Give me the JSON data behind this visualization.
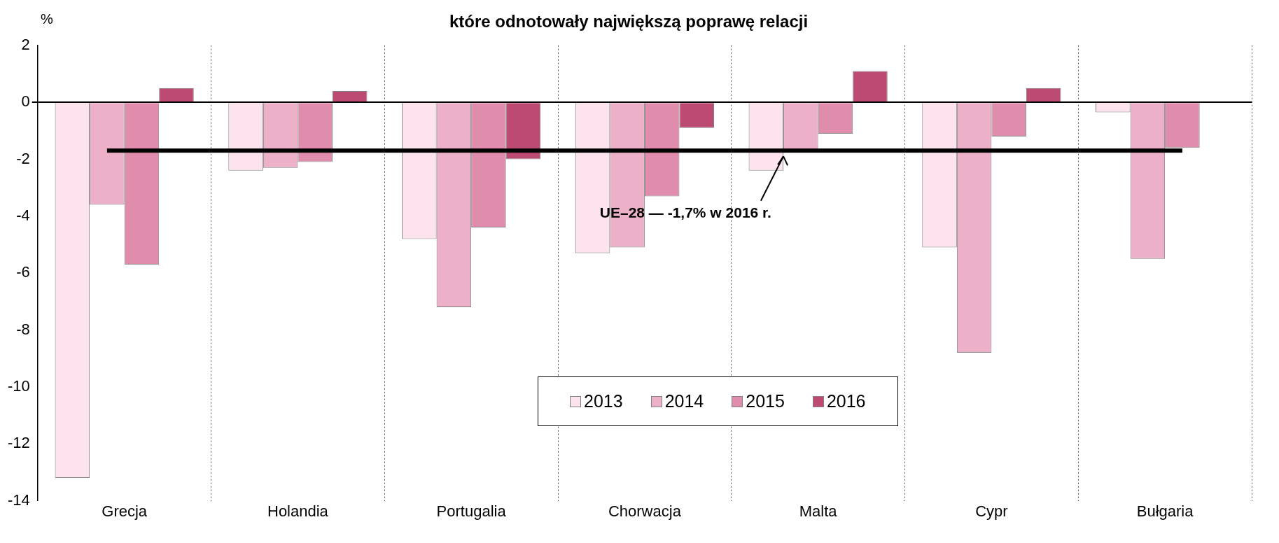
{
  "chart_data": {
    "type": "bar",
    "title": "które odnotowały największą poprawę relacji",
    "ylabel": "%",
    "categories": [
      "Grecja",
      "Holandia",
      "Portugalia",
      "Chorwacja",
      "Malta",
      "Cypr",
      "Bułgaria"
    ],
    "series": [
      {
        "name": "2013",
        "color": "#fde3ee",
        "values": [
          -13.2,
          -2.4,
          -4.8,
          -5.3,
          -2.4,
          -5.1,
          -0.35
        ]
      },
      {
        "name": "2014",
        "color": "#ecb0c8",
        "values": [
          -3.6,
          -2.3,
          -7.2,
          -5.1,
          -1.7,
          -8.8,
          -5.5
        ]
      },
      {
        "name": "2015",
        "color": "#e08cac",
        "values": [
          -5.7,
          -2.1,
          -4.4,
          -3.3,
          -1.1,
          -1.2,
          -1.6
        ]
      },
      {
        "name": "2016",
        "color": "#bc4a73",
        "values": [
          0.5,
          0.4,
          -2.0,
          -0.9,
          1.1,
          0.5,
          null
        ]
      }
    ],
    "ylim": [
      -14,
      2
    ],
    "yticks": [
      -14,
      -12,
      -10,
      -8,
      -6,
      -4,
      -2,
      0,
      2
    ],
    "ref_lines": [
      {
        "axis": "y",
        "value": -1.7,
        "label": "UE–28 — -1,7% w 2016 r.",
        "color": "#000000"
      }
    ],
    "grid": "x",
    "legend": "bottom"
  }
}
